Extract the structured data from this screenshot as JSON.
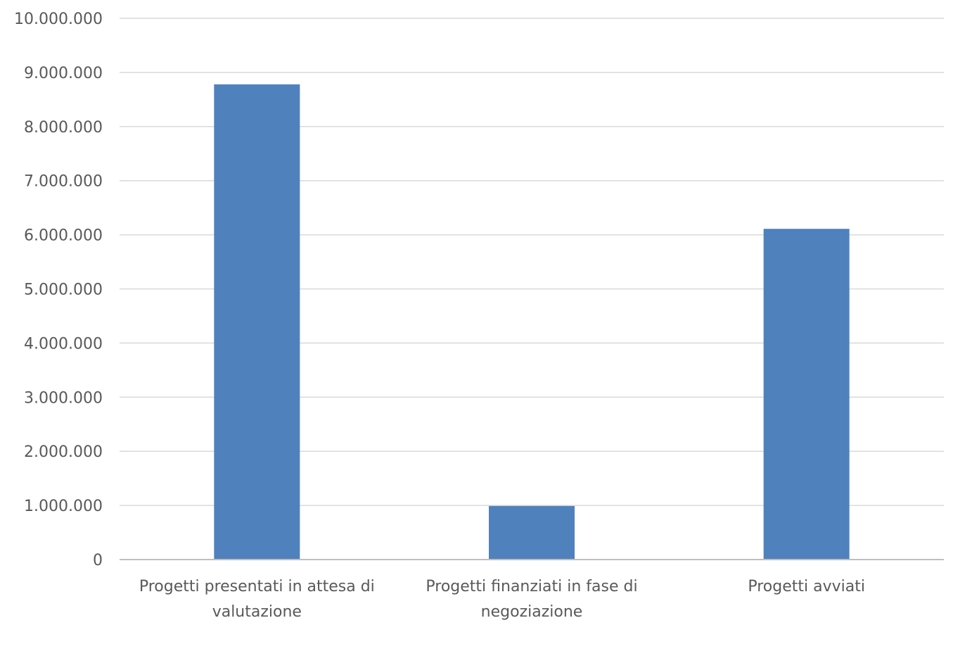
{
  "chart_data": {
    "type": "bar",
    "title": "",
    "xlabel": "",
    "ylabel": "",
    "ylim": [
      0,
      10000000
    ],
    "grid": true,
    "bar_color": "#4f81bd",
    "y_ticks": [
      {
        "value": 0,
        "label": "0"
      },
      {
        "value": 1000000,
        "label": "1.000.000"
      },
      {
        "value": 2000000,
        "label": "2.000.000"
      },
      {
        "value": 3000000,
        "label": "3.000.000"
      },
      {
        "value": 4000000,
        "label": "4.000.000"
      },
      {
        "value": 5000000,
        "label": "5.000.000"
      },
      {
        "value": 6000000,
        "label": "6.000.000"
      },
      {
        "value": 7000000,
        "label": "7.000.000"
      },
      {
        "value": 8000000,
        "label": "8.000.000"
      },
      {
        "value": 9000000,
        "label": "9.000.000"
      },
      {
        "value": 10000000,
        "label": "10.000.000"
      }
    ],
    "categories": [
      {
        "lines": [
          "Progetti presentati in attesa di",
          "valutazione"
        ]
      },
      {
        "lines": [
          "Progetti finanziati in fase di",
          "negoziazione"
        ]
      },
      {
        "lines": [
          "Progetti avviati"
        ]
      }
    ],
    "values": [
      8780000,
      990000,
      6110000
    ]
  }
}
